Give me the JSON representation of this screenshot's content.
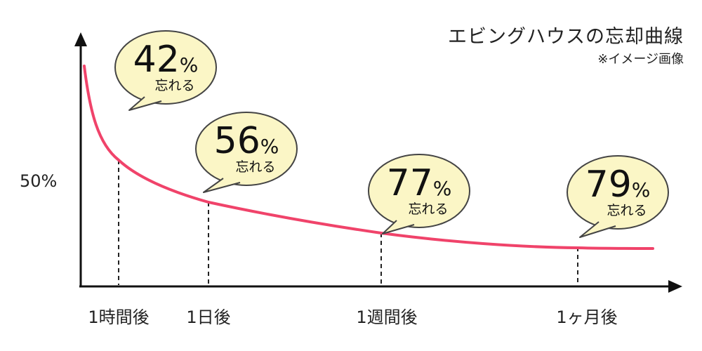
{
  "chart_data": {
    "type": "line",
    "title": "エビングハウスの忘却曲線",
    "subtitle": "※イメージ画像",
    "ytick": "50%",
    "colors": {
      "curve": "#f0436a",
      "bubble_fill": "#fbf6c6",
      "bubble_stroke": "#444444",
      "axis": "#111111"
    },
    "points": [
      {
        "label": "1時間後",
        "forget_value": "42",
        "unit": "%",
        "note": "忘れる"
      },
      {
        "label": "1日後",
        "forget_value": "56",
        "unit": "%",
        "note": "忘れる"
      },
      {
        "label": "1週間後",
        "forget_value": "77",
        "unit": "%",
        "note": "忘れる"
      },
      {
        "label": "1ヶ月後",
        "forget_value": "79",
        "unit": "%",
        "note": "忘れる"
      }
    ]
  }
}
